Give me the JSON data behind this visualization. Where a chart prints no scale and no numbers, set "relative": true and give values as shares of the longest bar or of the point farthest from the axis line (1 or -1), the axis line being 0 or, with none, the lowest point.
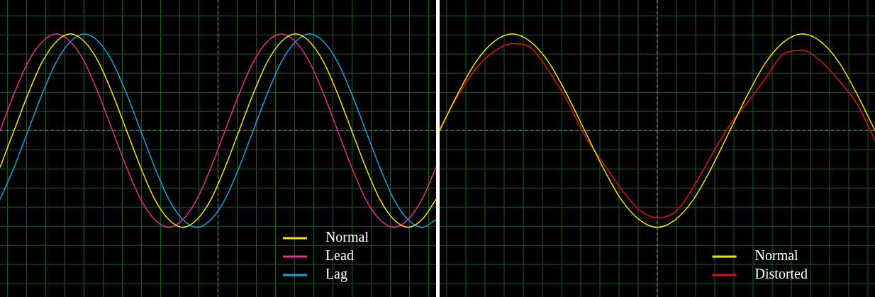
{
  "chart_data": [
    {
      "type": "line",
      "relative": true,
      "grid": true,
      "legend": "bottom right",
      "marker": "none",
      "ref_lines": [
        {
          "axis": "y",
          "value": 0,
          "color": "#9a9a9a",
          "line_style": "dashed"
        }
      ],
      "categories": [
        null,
        null,
        null,
        null,
        null,
        null,
        null,
        null,
        null,
        null,
        null,
        null,
        null,
        null,
        null,
        null,
        null,
        null,
        null,
        null,
        null,
        null,
        null,
        null,
        null,
        null,
        null,
        null,
        null,
        null,
        null,
        null
      ],
      "series": [
        {
          "name": "Normal",
          "color": "#f2e600",
          "values": [
            -0.38,
            0,
            0.38,
            0.71,
            0.92,
            1,
            0.92,
            0.71,
            0.38,
            0,
            -0.38,
            -0.71,
            -0.92,
            -1,
            -0.92,
            -0.71,
            -0.38,
            0,
            0.38,
            0.71,
            0.92,
            1,
            0.92,
            0.71,
            0.38,
            0,
            -0.38,
            -0.71,
            -0.92,
            -1,
            -0.92,
            -0.71
          ]
        },
        {
          "name": "Lead",
          "color": "#e0308a",
          "values": [
            0,
            0.38,
            0.71,
            0.92,
            1,
            0.92,
            0.71,
            0.38,
            0,
            -0.38,
            -0.71,
            -0.92,
            -1,
            -0.92,
            -0.71,
            -0.38,
            0,
            0.38,
            0.71,
            0.92,
            1,
            0.92,
            0.71,
            0.38,
            0,
            -0.38,
            -0.71,
            -0.92,
            -1,
            -0.92,
            -0.71,
            -0.38
          ]
        },
        {
          "name": "Lag",
          "color": "#1aa0d8",
          "values": [
            -0.71,
            -0.38,
            0,
            0.38,
            0.71,
            0.92,
            1,
            0.92,
            0.71,
            0.38,
            0,
            -0.38,
            -0.71,
            -0.92,
            -1,
            -0.92,
            -0.71,
            -0.38,
            0,
            0.38,
            0.71,
            0.92,
            1,
            0.92,
            0.71,
            0.38,
            0,
            -0.38,
            -0.71,
            -0.92,
            -1,
            -0.92
          ]
        }
      ]
    },
    {
      "type": "line",
      "relative": true,
      "grid": true,
      "legend": "bottom right",
      "marker": "none",
      "ref_lines": [
        {
          "axis": "y",
          "value": 0,
          "color": "#9a9a9a",
          "line_style": "dashed"
        }
      ],
      "categories": [
        null,
        null,
        null,
        null,
        null,
        null,
        null,
        null,
        null,
        null,
        null,
        null,
        null,
        null,
        null,
        null,
        null,
        null,
        null,
        null,
        null,
        null,
        null,
        null,
        null
      ],
      "series": [
        {
          "name": "Normal",
          "color": "#f2e600",
          "values": [
            0,
            0.38,
            0.71,
            0.92,
            1,
            0.92,
            0.71,
            0.38,
            0,
            -0.38,
            -0.71,
            -0.92,
            -1,
            -0.92,
            -0.71,
            -0.38,
            0,
            0.38,
            0.71,
            0.92,
            1,
            0.92,
            0.71,
            0.38,
            0
          ]
        },
        {
          "name": "Distorted",
          "color": "#e01010",
          "values": [
            0.02,
            0.36,
            0.64,
            0.82,
            0.9,
            0.86,
            0.62,
            0.32,
            -0.05,
            -0.33,
            -0.6,
            -0.82,
            -0.9,
            -0.84,
            -0.58,
            -0.25,
            0.06,
            0.3,
            0.55,
            0.8,
            0.83,
            0.72,
            0.52,
            0.28,
            -0.1
          ]
        }
      ]
    }
  ]
}
